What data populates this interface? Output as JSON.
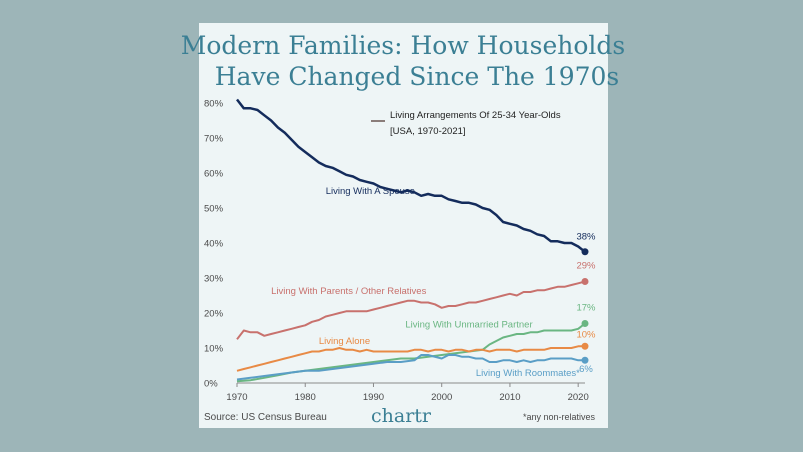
{
  "title_line1": "Modern Families: How Households",
  "title_line2": "Have Changed Since The 1970s",
  "legend": {
    "title": "Living Arrangements Of 25-34 Year-Olds",
    "subtitle": "[USA, 1970-2021]"
  },
  "footer": {
    "source": "Source: US Census Bureau",
    "logo": "chartr",
    "note": "*any non-relatives"
  },
  "chart_data": {
    "type": "line",
    "xlim": [
      1970,
      2021
    ],
    "ylim": [
      0,
      80
    ],
    "x_ticks": [
      1970,
      1980,
      1990,
      2000,
      2010,
      2020
    ],
    "y_ticks": [
      "0%",
      "10%",
      "20%",
      "30%",
      "40%",
      "50%",
      "60%",
      "70%",
      "80%"
    ],
    "y_tick_values": [
      0,
      10,
      20,
      30,
      40,
      50,
      60,
      70,
      80
    ],
    "grid": false,
    "series": [
      {
        "name": "Living With A Spouse",
        "color": "#142c5c",
        "end_label": "38%",
        "points": [
          [
            1970,
            81
          ],
          [
            1971,
            78.5
          ],
          [
            1972,
            78.5
          ],
          [
            1973,
            78
          ],
          [
            1974,
            76.5
          ],
          [
            1975,
            75
          ],
          [
            1976,
            73
          ],
          [
            1977,
            71.5
          ],
          [
            1978,
            69.5
          ],
          [
            1979,
            67.5
          ],
          [
            1980,
            66
          ],
          [
            1981,
            64.5
          ],
          [
            1982,
            63
          ],
          [
            1983,
            62
          ],
          [
            1984,
            61.5
          ],
          [
            1985,
            60.5
          ],
          [
            1986,
            59.5
          ],
          [
            1987,
            59
          ],
          [
            1988,
            58
          ],
          [
            1989,
            57.5
          ],
          [
            1990,
            57
          ],
          [
            1991,
            56
          ],
          [
            1992,
            55.5
          ],
          [
            1993,
            55
          ],
          [
            1994,
            54.5
          ],
          [
            1995,
            55
          ],
          [
            1996,
            54.5
          ],
          [
            1997,
            53.5
          ],
          [
            1998,
            54
          ],
          [
            1999,
            53.5
          ],
          [
            2000,
            53.5
          ],
          [
            2001,
            52.5
          ],
          [
            2002,
            52
          ],
          [
            2003,
            51.5
          ],
          [
            2004,
            51.5
          ],
          [
            2005,
            51
          ],
          [
            2006,
            50
          ],
          [
            2007,
            49.5
          ],
          [
            2008,
            48
          ],
          [
            2009,
            46
          ],
          [
            2010,
            45.5
          ],
          [
            2011,
            45
          ],
          [
            2012,
            44
          ],
          [
            2013,
            43.5
          ],
          [
            2014,
            42.5
          ],
          [
            2015,
            42
          ],
          [
            2016,
            40.5
          ],
          [
            2017,
            40.5
          ],
          [
            2018,
            40
          ],
          [
            2019,
            40
          ],
          [
            2020,
            39
          ],
          [
            2021,
            37.5
          ]
        ]
      },
      {
        "name": "Living With Parents / Other Relatives",
        "color": "#c8716d",
        "end_label": "29%",
        "points": [
          [
            1970,
            12.5
          ],
          [
            1971,
            15
          ],
          [
            1972,
            14.5
          ],
          [
            1973,
            14.5
          ],
          [
            1974,
            13.5
          ],
          [
            1975,
            14
          ],
          [
            1976,
            14.5
          ],
          [
            1977,
            15
          ],
          [
            1978,
            15.5
          ],
          [
            1979,
            16
          ],
          [
            1980,
            16.5
          ],
          [
            1981,
            17.5
          ],
          [
            1982,
            18
          ],
          [
            1983,
            19
          ],
          [
            1984,
            19.5
          ],
          [
            1985,
            20
          ],
          [
            1986,
            20.5
          ],
          [
            1987,
            20.5
          ],
          [
            1988,
            20.5
          ],
          [
            1989,
            20.5
          ],
          [
            1990,
            21
          ],
          [
            1991,
            21.5
          ],
          [
            1992,
            22
          ],
          [
            1993,
            22.5
          ],
          [
            1994,
            23
          ],
          [
            1995,
            23.5
          ],
          [
            1996,
            23.5
          ],
          [
            1997,
            23
          ],
          [
            1998,
            23
          ],
          [
            1999,
            22.5
          ],
          [
            2000,
            21.5
          ],
          [
            2001,
            22
          ],
          [
            2002,
            22
          ],
          [
            2003,
            22.5
          ],
          [
            2004,
            23
          ],
          [
            2005,
            23
          ],
          [
            2006,
            23.5
          ],
          [
            2007,
            24
          ],
          [
            2008,
            24.5
          ],
          [
            2009,
            25
          ],
          [
            2010,
            25.5
          ],
          [
            2011,
            25
          ],
          [
            2012,
            26
          ],
          [
            2013,
            26
          ],
          [
            2014,
            26.5
          ],
          [
            2015,
            26.5
          ],
          [
            2016,
            27
          ],
          [
            2017,
            27.5
          ],
          [
            2018,
            27.5
          ],
          [
            2019,
            28
          ],
          [
            2020,
            28.5
          ],
          [
            2021,
            29
          ]
        ]
      },
      {
        "name": "Living With Unmarried Partner",
        "color": "#6ab682",
        "end_label": "17%",
        "points": [
          [
            1970,
            0.5
          ],
          [
            1972,
            0.8
          ],
          [
            1974,
            1.5
          ],
          [
            1976,
            2.2
          ],
          [
            1978,
            3
          ],
          [
            1980,
            3.5
          ],
          [
            1982,
            4
          ],
          [
            1984,
            4.5
          ],
          [
            1986,
            5
          ],
          [
            1988,
            5.5
          ],
          [
            1990,
            6
          ],
          [
            1992,
            6.5
          ],
          [
            1994,
            7
          ],
          [
            1996,
            7
          ],
          [
            1998,
            7.5
          ],
          [
            2000,
            8
          ],
          [
            2002,
            8.5
          ],
          [
            2004,
            9
          ],
          [
            2006,
            9.5
          ],
          [
            2007,
            11
          ],
          [
            2008,
            12
          ],
          [
            2009,
            13
          ],
          [
            2010,
            13.5
          ],
          [
            2011,
            14
          ],
          [
            2012,
            14
          ],
          [
            2013,
            14.5
          ],
          [
            2014,
            14.5
          ],
          [
            2015,
            15
          ],
          [
            2016,
            15
          ],
          [
            2017,
            15
          ],
          [
            2018,
            15
          ],
          [
            2019,
            15
          ],
          [
            2020,
            15.5
          ],
          [
            2021,
            17
          ]
        ]
      },
      {
        "name": "Living Alone",
        "color": "#e88a45",
        "end_label": "10%",
        "points": [
          [
            1970,
            3.5
          ],
          [
            1971,
            4
          ],
          [
            1972,
            4.5
          ],
          [
            1973,
            5
          ],
          [
            1974,
            5.5
          ],
          [
            1975,
            6
          ],
          [
            1976,
            6.5
          ],
          [
            1977,
            7
          ],
          [
            1978,
            7.5
          ],
          [
            1979,
            8
          ],
          [
            1980,
            8.5
          ],
          [
            1981,
            9
          ],
          [
            1982,
            9
          ],
          [
            1983,
            9.5
          ],
          [
            1984,
            9.5
          ],
          [
            1985,
            10
          ],
          [
            1986,
            9.5
          ],
          [
            1987,
            9.5
          ],
          [
            1988,
            9
          ],
          [
            1989,
            9.5
          ],
          [
            1990,
            9
          ],
          [
            1991,
            9
          ],
          [
            1992,
            9
          ],
          [
            1993,
            9
          ],
          [
            1994,
            9
          ],
          [
            1995,
            9
          ],
          [
            1996,
            9.5
          ],
          [
            1997,
            9.5
          ],
          [
            1998,
            9
          ],
          [
            1999,
            9.5
          ],
          [
            2000,
            9.5
          ],
          [
            2001,
            9
          ],
          [
            2002,
            9.5
          ],
          [
            2003,
            9.5
          ],
          [
            2004,
            9
          ],
          [
            2005,
            9.5
          ],
          [
            2006,
            9.5
          ],
          [
            2007,
            9
          ],
          [
            2008,
            9.5
          ],
          [
            2009,
            9.5
          ],
          [
            2010,
            9.5
          ],
          [
            2011,
            9
          ],
          [
            2012,
            9.5
          ],
          [
            2013,
            9.5
          ],
          [
            2014,
            9.5
          ],
          [
            2015,
            9.5
          ],
          [
            2016,
            10
          ],
          [
            2017,
            10
          ],
          [
            2018,
            10
          ],
          [
            2019,
            10
          ],
          [
            2020,
            10.5
          ],
          [
            2021,
            10.5
          ]
        ]
      },
      {
        "name": "Living With Roommates*",
        "color": "#5a9ec6",
        "end_label": "6%",
        "points": [
          [
            1970,
            1
          ],
          [
            1972,
            1.5
          ],
          [
            1974,
            2
          ],
          [
            1976,
            2.5
          ],
          [
            1978,
            3
          ],
          [
            1980,
            3.5
          ],
          [
            1982,
            3.5
          ],
          [
            1984,
            4
          ],
          [
            1986,
            4.5
          ],
          [
            1988,
            5
          ],
          [
            1990,
            5.5
          ],
          [
            1992,
            6
          ],
          [
            1994,
            6
          ],
          [
            1996,
            6.5
          ],
          [
            1997,
            8
          ],
          [
            1998,
            8
          ],
          [
            1999,
            7.5
          ],
          [
            2000,
            7
          ],
          [
            2001,
            8
          ],
          [
            2002,
            8
          ],
          [
            2003,
            7.5
          ],
          [
            2004,
            7.5
          ],
          [
            2005,
            7
          ],
          [
            2006,
            7
          ],
          [
            2007,
            6
          ],
          [
            2008,
            6
          ],
          [
            2009,
            6.5
          ],
          [
            2010,
            6.5
          ],
          [
            2011,
            6
          ],
          [
            2012,
            6.5
          ],
          [
            2013,
            6
          ],
          [
            2014,
            6.5
          ],
          [
            2015,
            6.5
          ],
          [
            2016,
            7
          ],
          [
            2017,
            7
          ],
          [
            2018,
            7
          ],
          [
            2019,
            7
          ],
          [
            2020,
            6.5
          ],
          [
            2021,
            6.5
          ]
        ]
      }
    ]
  }
}
